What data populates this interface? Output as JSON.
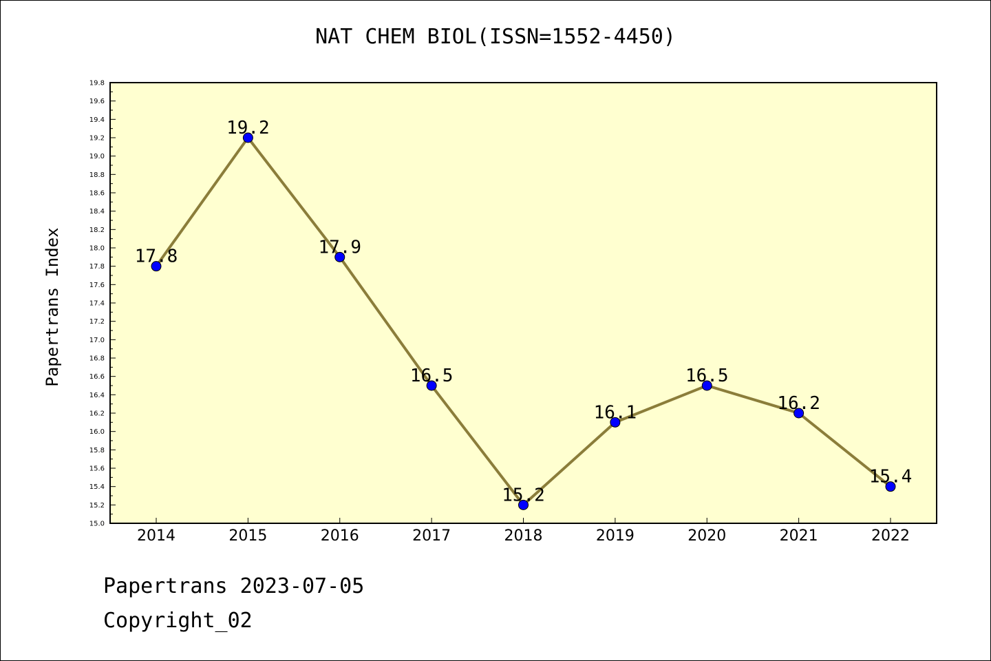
{
  "chart_data": {
    "type": "line",
    "title": "NAT CHEM BIOL(ISSN=1552-4450)",
    "ylabel": "Papertrans Index",
    "xlabel": "",
    "categories": [
      "2014",
      "2015",
      "2016",
      "2017",
      "2018",
      "2019",
      "2020",
      "2021",
      "2022"
    ],
    "values": [
      17.8,
      19.2,
      17.9,
      16.5,
      15.2,
      16.1,
      16.5,
      16.2,
      15.4
    ],
    "data_labels": [
      "17.8",
      "19.2",
      "17.9",
      "16.5",
      "15.2",
      "16.1",
      "16.5",
      "16.2",
      "15.4"
    ],
    "ylim": [
      15.0,
      19.8
    ],
    "yticks": [
      "15.0",
      "15.2",
      "15.4",
      "15.6",
      "15.8",
      "16.0",
      "16.2",
      "16.4",
      "16.6",
      "16.8",
      "17.0",
      "17.2",
      "17.4",
      "17.6",
      "17.8",
      "18.0",
      "18.2",
      "18.4",
      "18.6",
      "18.8",
      "19.0",
      "19.2",
      "19.4",
      "19.6",
      "19.8"
    ],
    "grid": false,
    "colors": {
      "plot_background": "#ffffd0",
      "line": "#8b7d3a",
      "marker": "#0000ff"
    }
  },
  "footer": {
    "line1": "Papertrans 2023-07-05",
    "line2": "Copyright_02"
  }
}
